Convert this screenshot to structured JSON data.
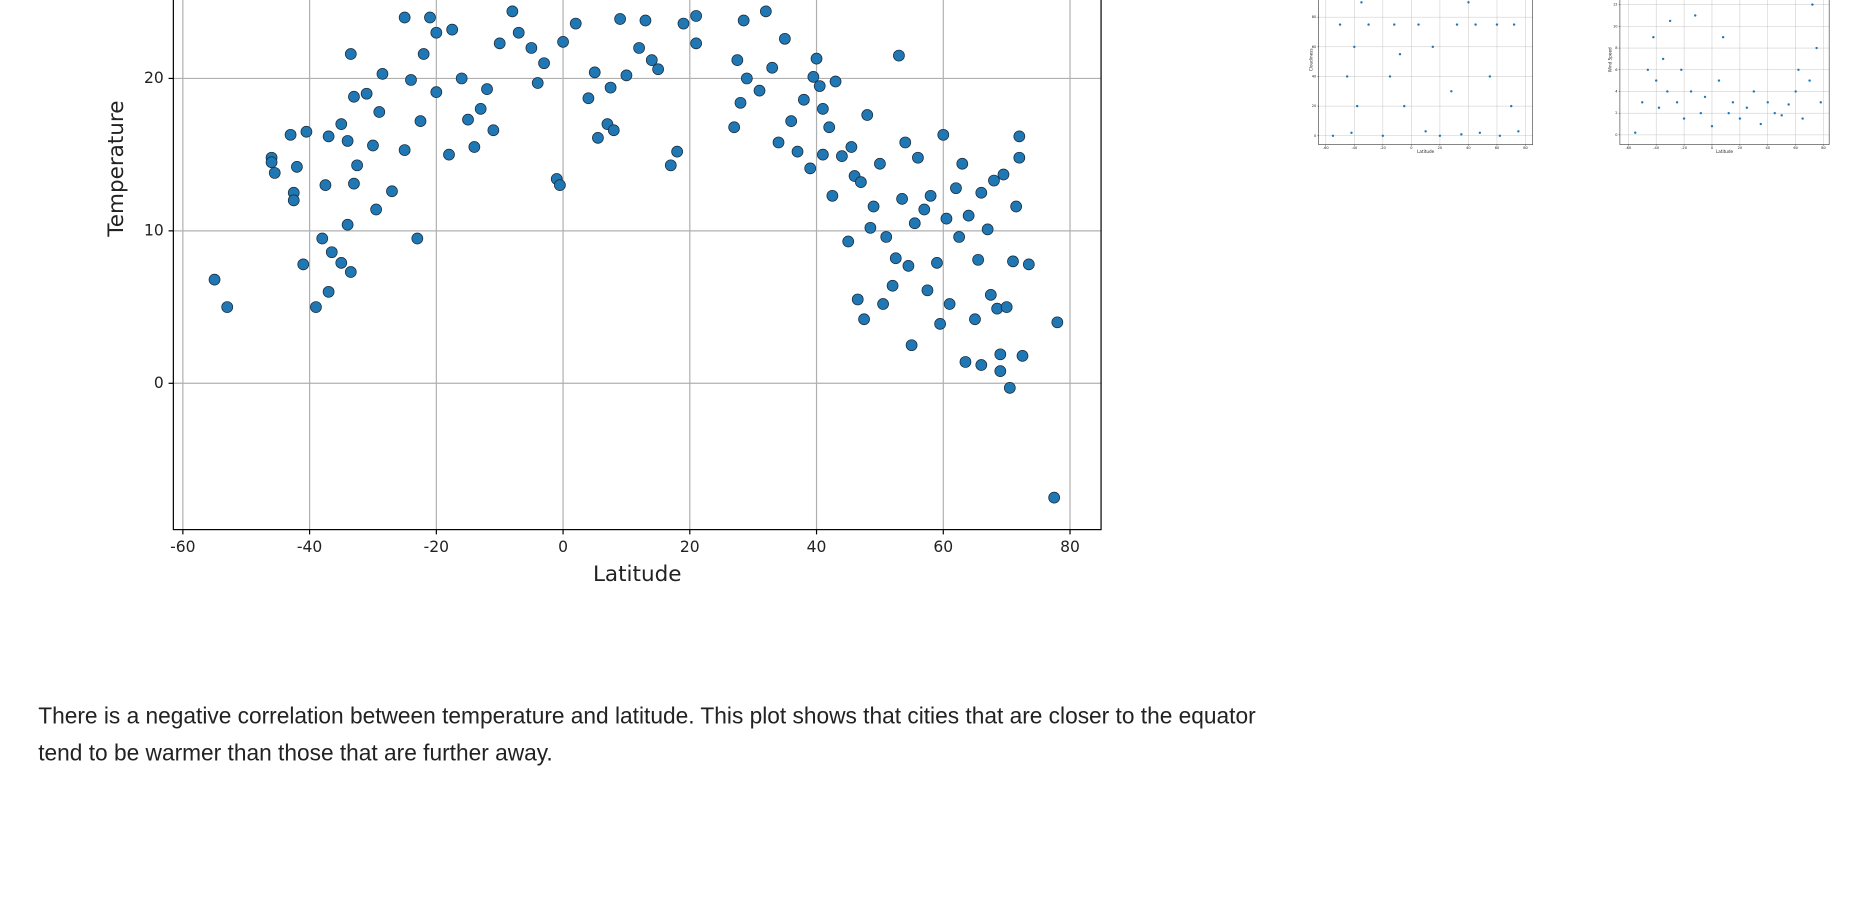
{
  "chart_data": [
    {
      "type": "scatter",
      "xlabel": "Latitude",
      "ylabel": "Temperature",
      "color": "#1f77b4",
      "grid": true,
      "xlim": [
        -61.5,
        84.9
      ],
      "ylim": [
        -9.6,
        35
      ],
      "xticks": [
        -60,
        -40,
        -20,
        0,
        20,
        40,
        60,
        80
      ],
      "yticks": [
        0,
        10,
        20
      ],
      "x": [
        -55,
        -53,
        -46,
        -46,
        -45.5,
        -43,
        -42.5,
        -42.5,
        -42,
        -40.5,
        -41,
        -39,
        -38,
        -37.5,
        -37,
        -37,
        -36.5,
        -35,
        -35,
        -34,
        -34,
        -33.5,
        -33,
        -33,
        -33.5,
        -32.5,
        -31,
        -30,
        -29.5,
        -29,
        -28.5,
        -27,
        -25,
        -25,
        -24,
        -23,
        -22.5,
        -22,
        -21,
        -20,
        -20,
        -18,
        -17.5,
        -16,
        -15,
        -14,
        -13,
        -12,
        -11,
        -10,
        -8,
        -7,
        -5,
        -4,
        -3,
        -1,
        -0.5,
        0,
        2,
        4,
        5,
        5.5,
        7,
        7.5,
        8,
        9,
        10,
        12,
        13,
        14,
        15,
        17,
        18,
        19,
        21,
        21,
        27,
        27.5,
        28,
        28.5,
        29,
        31,
        32,
        33,
        34,
        35,
        36,
        37,
        38,
        39,
        39.5,
        40,
        40.5,
        41,
        41,
        42,
        42.5,
        43,
        44,
        45,
        45.5,
        46,
        46.5,
        47,
        47.5,
        48,
        48.5,
        49,
        50,
        50.5,
        51,
        52,
        52.5,
        53,
        53.5,
        54,
        54.5,
        55,
        55.5,
        56,
        57,
        57.5,
        58,
        59,
        59.5,
        60,
        60.5,
        61,
        62,
        62.5,
        63,
        63.5,
        64,
        65,
        65.5,
        66,
        66,
        67,
        67.5,
        68,
        68.5,
        69,
        69,
        69.5,
        70,
        70.5,
        71,
        71.5,
        72,
        72,
        72.5,
        73.5,
        77.5,
        78
      ],
      "values": [
        6.8,
        5,
        14.8,
        14.5,
        13.8,
        16.3,
        12.5,
        12,
        14.2,
        16.5,
        7.8,
        5,
        9.5,
        13,
        6,
        16.2,
        8.6,
        17,
        7.9,
        10.4,
        15.9,
        7.3,
        13.1,
        18.8,
        21.6,
        14.3,
        19,
        15.6,
        11.4,
        17.8,
        20.3,
        12.6,
        24,
        15.3,
        19.9,
        9.5,
        17.2,
        21.6,
        24,
        19.1,
        23,
        15,
        23.2,
        20,
        17.3,
        15.5,
        18,
        19.3,
        16.6,
        22.3,
        24.4,
        23,
        22,
        19.7,
        21,
        13.4,
        13,
        22.4,
        23.6,
        18.7,
        20.4,
        16.1,
        17,
        19.4,
        16.6,
        23.9,
        20.2,
        22,
        23.8,
        21.2,
        20.6,
        14.3,
        15.2,
        23.6,
        24.1,
        22.3,
        16.8,
        21.2,
        18.4,
        23.8,
        20,
        19.2,
        24.4,
        20.7,
        15.8,
        22.6,
        17.2,
        15.2,
        18.6,
        14.1,
        20.1,
        21.3,
        19.5,
        18,
        15,
        16.8,
        12.3,
        19.8,
        14.9,
        9.3,
        15.5,
        13.6,
        5.5,
        13.2,
        4.2,
        17.6,
        10.2,
        11.6,
        14.4,
        5.2,
        9.6,
        6.4,
        8.2,
        21.5,
        12.1,
        15.8,
        7.7,
        2.5,
        10.5,
        14.8,
        11.4,
        6.1,
        12.3,
        7.9,
        3.9,
        16.3,
        10.8,
        5.2,
        12.8,
        9.6,
        14.4,
        1.4,
        11,
        4.2,
        8.1,
        12.5,
        1.2,
        10.1,
        5.8,
        13.3,
        4.9,
        0.8,
        1.9,
        13.7,
        5,
        -0.3,
        8,
        11.6,
        14.8,
        16.2,
        1.8,
        7.8,
        -7.5,
        4
      ]
    },
    {
      "type": "scatter",
      "xlabel": "Latitude",
      "ylabel": "Cloudiness",
      "color": "#1f77b4",
      "grid": true,
      "xlim": [
        -65,
        85
      ],
      "ylim": [
        -6,
        110
      ],
      "xticks": [
        -60,
        -40,
        -20,
        0,
        20,
        40,
        60,
        80
      ],
      "yticks": [
        0,
        20,
        40,
        60,
        80
      ],
      "x": [
        -55,
        -50,
        -45,
        -42,
        -40,
        -38,
        -35,
        -30,
        -25,
        -20,
        -15,
        -12,
        -8,
        -5,
        0,
        5,
        10,
        15,
        20,
        25,
        28,
        32,
        35,
        40,
        45,
        48,
        52,
        55,
        60,
        62,
        65,
        70,
        72,
        75
      ],
      "values": [
        0,
        75,
        40,
        2,
        60,
        20,
        90,
        75,
        100,
        0,
        40,
        75,
        55,
        20,
        100,
        75,
        3,
        60,
        0,
        100,
        30,
        75,
        1,
        90,
        75,
        2,
        100,
        40,
        75,
        0,
        100,
        20,
        75,
        3
      ]
    },
    {
      "type": "scatter",
      "xlabel": "Latitude",
      "ylabel": "Wind Speed",
      "color": "#1f77b4",
      "grid": true,
      "xlim": [
        -66,
        84
      ],
      "ylim": [
        -0.9,
        14
      ],
      "xticks": [
        -60,
        -40,
        -20,
        0,
        20,
        40,
        60,
        80
      ],
      "yticks": [
        0,
        2,
        4,
        6,
        8,
        10,
        12
      ],
      "x": [
        -55,
        -50,
        -46,
        -42,
        -40,
        -38,
        -35,
        -32,
        -30,
        -25,
        -22,
        -20,
        -15,
        -12,
        -8,
        -5,
        0,
        5,
        8,
        12,
        15,
        20,
        25,
        30,
        35,
        40,
        45,
        50,
        55,
        60,
        62,
        65,
        70,
        72,
        75,
        78
      ],
      "values": [
        0.2,
        3,
        6,
        9,
        5,
        2.5,
        7,
        4,
        10.5,
        3,
        6,
        1.5,
        4,
        11,
        2,
        3.5,
        0.8,
        5,
        9,
        2,
        3,
        1.5,
        2.5,
        4,
        1,
        3,
        2,
        1.8,
        2.8,
        4,
        6,
        1.5,
        5,
        12,
        8,
        3
      ]
    }
  ],
  "paragraph": [
    "There is a negative correlation between temperature and latitude. This plot shows that cities that are closer to the equator",
    "tend to be warmer than those that are further away."
  ]
}
